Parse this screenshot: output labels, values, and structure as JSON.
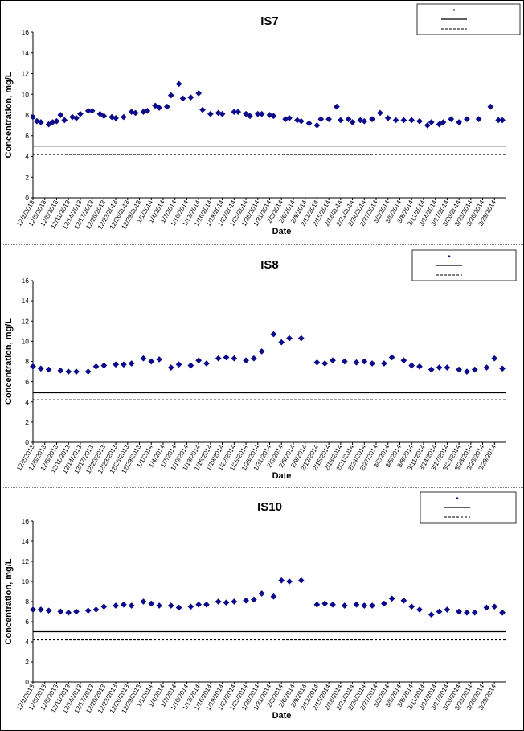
{
  "chart_data": [
    {
      "type": "scatter",
      "title": "IS7",
      "xlabel": "Date",
      "ylabel": "Concentration, mg/L",
      "ylim": [
        0,
        16
      ],
      "yticks": [
        "0",
        "2",
        "4",
        "6",
        "8",
        "10",
        "12",
        "14",
        "16"
      ],
      "xticks": [
        "12/2/2013",
        "12/5/2013",
        "12/8/2013",
        "12/11/2013",
        "12/14/2013",
        "12/17/2013",
        "12/20/2013",
        "12/23/2013",
        "12/26/2013",
        "12/29/2013",
        "1/1/2014",
        "1/4/2014",
        "1/7/2014",
        "1/10/2014",
        "1/13/2014",
        "1/16/2014",
        "1/19/2014",
        "1/22/2014",
        "1/25/2014",
        "1/28/2014",
        "1/31/2014",
        "2/3/2014",
        "2/6/2014",
        "2/9/2014",
        "2/12/2014",
        "2/15/2014",
        "2/18/2014",
        "2/21/2014",
        "2/24/2014",
        "2/27/2014",
        "3/2/2014",
        "3/5/2014",
        "3/8/2014",
        "3/11/2014",
        "3/14/2014",
        "3/17/2014",
        "3/20/2014",
        "3/23/2014",
        "3/26/2014",
        "3/29/2014"
      ],
      "legend_position": "top-right",
      "series": [
        {
          "style": "marker",
          "x": [
            0,
            1,
            2,
            4,
            5,
            6,
            7,
            8,
            10,
            11,
            12,
            14,
            15,
            17,
            18,
            20,
            21,
            23,
            25,
            26,
            28,
            29,
            31,
            32,
            34,
            35,
            37,
            38,
            40,
            42,
            43,
            45,
            47,
            48,
            51,
            52,
            54,
            55,
            57,
            58,
            60,
            61,
            64,
            65,
            67,
            68,
            70,
            72,
            73,
            75,
            77,
            78,
            80,
            81,
            83,
            84,
            86,
            88,
            90,
            92,
            94,
            96,
            98,
            100,
            101,
            103,
            104,
            106,
            108,
            110,
            113,
            116,
            118,
            119
          ],
          "y": [
            7.8,
            7.4,
            7.3,
            7.1,
            7.3,
            7.4,
            8.0,
            7.5,
            7.8,
            7.7,
            8.1,
            8.4,
            8.4,
            8.1,
            7.9,
            7.8,
            7.7,
            7.8,
            8.3,
            8.2,
            8.3,
            8.4,
            8.9,
            8.7,
            8.8,
            9.9,
            11.0,
            9.6,
            9.7,
            10.1,
            8.5,
            8.1,
            8.2,
            8.1,
            8.3,
            8.3,
            8.1,
            7.9,
            8.1,
            8.1,
            8.0,
            7.9,
            7.6,
            7.7,
            7.5,
            7.4,
            7.2,
            7.0,
            7.6,
            7.6,
            8.8,
            7.5,
            7.6,
            7.3,
            7.5,
            7.4,
            7.6,
            8.2,
            7.7,
            7.5,
            7.5,
            7.5,
            7.4,
            7.0,
            7.3,
            7.1,
            7.3,
            7.6,
            7.3,
            7.6,
            7.6,
            8.8,
            7.5,
            7.5
          ]
        },
        {
          "style": "solid",
          "x": [
            0,
            120
          ],
          "y": [
            5.0,
            5.0
          ]
        },
        {
          "style": "dashed",
          "x": [
            0,
            120
          ],
          "y": [
            4.2,
            4.2
          ]
        }
      ]
    },
    {
      "type": "scatter",
      "title": "IS8",
      "xlabel": "Date",
      "ylabel": "Concentration, mg/L",
      "ylim": [
        0,
        16
      ],
      "yticks": [
        "0",
        "2",
        "4",
        "6",
        "8",
        "10",
        "12",
        "14",
        "16"
      ],
      "xticks": [
        "12/2/2013",
        "12/5/2013",
        "12/8/2013",
        "12/11/2013",
        "12/14/2013",
        "12/17/2013",
        "12/20/2013",
        "12/23/2013",
        "12/26/2013",
        "12/29/2013",
        "1/1/2014",
        "1/4/2014",
        "1/7/2014",
        "1/10/2014",
        "1/13/2014",
        "1/16/2014",
        "1/19/2014",
        "1/22/2014",
        "1/25/2014",
        "1/28/2014",
        "1/31/2014",
        "2/3/2014",
        "2/6/2014",
        "2/9/2014",
        "2/12/2014",
        "2/15/2014",
        "2/18/2014",
        "2/21/2014",
        "2/24/2014",
        "2/27/2014",
        "3/2/2014",
        "3/5/2014",
        "3/8/2014",
        "3/11/2014",
        "3/14/2014",
        "3/17/2014",
        "3/20/2014",
        "3/23/2014",
        "3/26/2014",
        "3/29/2014"
      ],
      "legend_position": "top-right",
      "series": [
        {
          "style": "marker",
          "x": [
            0,
            2,
            4,
            7,
            9,
            11,
            14,
            16,
            18,
            21,
            23,
            25,
            28,
            30,
            32,
            35,
            37,
            40,
            42,
            44,
            47,
            49,
            51,
            54,
            56,
            58,
            61,
            63,
            65,
            68,
            72,
            74,
            76,
            79,
            82,
            84,
            86,
            89,
            91,
            94,
            96,
            98,
            101,
            103,
            105,
            108,
            110,
            112,
            115,
            117,
            119
          ],
          "y": [
            7.5,
            7.3,
            7.2,
            7.1,
            7.0,
            7.0,
            7.0,
            7.5,
            7.6,
            7.7,
            7.7,
            7.8,
            8.3,
            8.0,
            8.2,
            7.4,
            7.7,
            7.6,
            8.1,
            7.8,
            8.3,
            8.4,
            8.3,
            8.1,
            8.3,
            9.0,
            10.7,
            9.9,
            10.3,
            10.3,
            7.9,
            7.8,
            8.1,
            8.0,
            7.9,
            8.0,
            7.8,
            7.8,
            8.4,
            8.1,
            7.6,
            7.5,
            7.2,
            7.4,
            7.4,
            7.2,
            7.0,
            7.2,
            7.4,
            8.3,
            7.3
          ]
        },
        {
          "style": "solid",
          "x": [
            0,
            120
          ],
          "y": [
            4.9,
            4.9
          ]
        },
        {
          "style": "dashed",
          "x": [
            0,
            120
          ],
          "y": [
            4.2,
            4.2
          ]
        }
      ]
    },
    {
      "type": "scatter",
      "title": "IS10",
      "xlabel": "Date",
      "ylabel": "Concentration, mg/L",
      "ylim": [
        0,
        16
      ],
      "yticks": [
        "0",
        "2",
        "4",
        "6",
        "8",
        "10",
        "12",
        "14",
        "16"
      ],
      "xticks": [
        "12/2/2013",
        "12/5/2013",
        "12/8/2013",
        "12/11/2013",
        "12/14/2013",
        "12/17/2013",
        "12/20/2013",
        "12/23/2013",
        "12/26/2013",
        "12/29/2013",
        "1/1/2014",
        "1/4/2014",
        "1/7/2014",
        "1/10/2014",
        "1/13/2014",
        "1/16/2014",
        "1/19/2014",
        "1/22/2014",
        "1/25/2014",
        "1/28/2014",
        "1/31/2014",
        "2/3/2014",
        "2/6/2014",
        "2/9/2014",
        "2/12/2014",
        "2/15/2014",
        "2/18/2014",
        "2/21/2014",
        "2/24/2014",
        "2/27/2014",
        "3/2/2014",
        "3/5/2014",
        "3/8/2014",
        "3/11/2014",
        "3/14/2014",
        "3/17/2014",
        "3/20/2014",
        "3/23/2014",
        "3/26/2014",
        "3/29/2014"
      ],
      "legend_position": "top-right",
      "series": [
        {
          "style": "marker",
          "x": [
            0,
            2,
            4,
            7,
            9,
            11,
            14,
            16,
            18,
            21,
            23,
            25,
            28,
            30,
            32,
            35,
            37,
            40,
            42,
            44,
            47,
            49,
            51,
            54,
            56,
            58,
            61,
            63,
            65,
            68,
            72,
            74,
            76,
            79,
            82,
            84,
            86,
            89,
            91,
            94,
            96,
            98,
            101,
            103,
            105,
            108,
            110,
            112,
            115,
            117,
            119
          ],
          "y": [
            7.2,
            7.2,
            7.1,
            7.0,
            6.9,
            7.0,
            7.1,
            7.2,
            7.5,
            7.6,
            7.7,
            7.6,
            8.0,
            7.8,
            7.6,
            7.6,
            7.4,
            7.5,
            7.7,
            7.7,
            8.0,
            7.9,
            8.0,
            8.1,
            8.2,
            8.8,
            8.5,
            10.1,
            10.0,
            10.1,
            7.7,
            7.8,
            7.7,
            7.6,
            7.7,
            7.6,
            7.6,
            7.8,
            8.3,
            8.1,
            7.5,
            7.2,
            6.7,
            7.0,
            7.2,
            7.0,
            6.9,
            6.9,
            7.4,
            7.5,
            6.9
          ]
        },
        {
          "style": "solid",
          "x": [
            0,
            120
          ],
          "y": [
            5.0,
            5.0
          ]
        },
        {
          "style": "dashed",
          "x": [
            0,
            120
          ],
          "y": [
            4.2,
            4.2
          ]
        }
      ]
    }
  ]
}
